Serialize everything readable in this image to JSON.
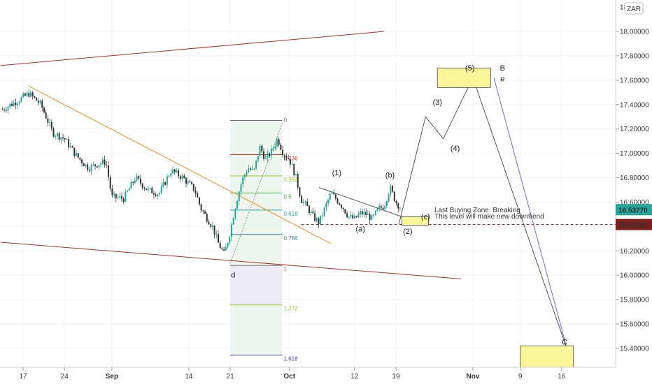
{
  "currency_badge": "ZAR",
  "chart_data": {
    "type": "candlestick",
    "title": "",
    "ylabel": "",
    "xlabel": "",
    "ylim": [
      15.2,
      18.18
    ],
    "ytick_labels": [
      "18.00000",
      "17.80000",
      "17.60000",
      "17.40000",
      "17.20000",
      "17.00000",
      "16.80000",
      "16.60000",
      "16.40000",
      "16.20000",
      "16.00000",
      "15.80000",
      "15.60000",
      "15.40000"
    ],
    "ytick_values": [
      18.0,
      17.8,
      17.6,
      17.4,
      17.2,
      17.0,
      16.8,
      16.6,
      16.4,
      16.2,
      16.0,
      15.8,
      15.6,
      15.4
    ],
    "top_partial_tick": "18",
    "x_labels": [
      {
        "label": "17",
        "day": 0
      },
      {
        "label": "24",
        "day": 7
      },
      {
        "label": "Sep",
        "day": 15
      },
      {
        "label": "14",
        "day": 28
      },
      {
        "label": "21",
        "day": 35
      },
      {
        "label": "Oct",
        "day": 45
      },
      {
        "label": "12",
        "day": 56
      },
      {
        "label": "19",
        "day": 63
      },
      {
        "label": "Nov",
        "day": 76
      },
      {
        "label": "9",
        "day": 84
      },
      {
        "label": "16",
        "day": 91
      }
    ],
    "price_labels": [
      {
        "value": 16.5377,
        "label": "16.53770",
        "color": "#26a69a"
      },
      {
        "value": 16.41582,
        "label": "16.41582",
        "color": "#7b1e1e"
      }
    ],
    "close_path": [
      {
        "day": -3.5,
        "price": 17.36
      },
      {
        "day": -1,
        "price": 17.43
      },
      {
        "day": 1,
        "price": 17.49
      },
      {
        "day": 3,
        "price": 17.4
      },
      {
        "day": 5,
        "price": 17.17
      },
      {
        "day": 7,
        "price": 17.12
      },
      {
        "day": 9,
        "price": 16.98
      },
      {
        "day": 11,
        "price": 16.88
      },
      {
        "day": 13,
        "price": 16.92
      },
      {
        "day": 14,
        "price": 16.93
      },
      {
        "day": 15,
        "price": 16.64
      },
      {
        "day": 17,
        "price": 16.63
      },
      {
        "day": 19,
        "price": 16.8
      },
      {
        "day": 21,
        "price": 16.7
      },
      {
        "day": 23,
        "price": 16.67
      },
      {
        "day": 25,
        "price": 16.86
      },
      {
        "day": 27,
        "price": 16.8
      },
      {
        "day": 29,
        "price": 16.7
      },
      {
        "day": 30,
        "price": 16.55
      },
      {
        "day": 32,
        "price": 16.4
      },
      {
        "day": 33,
        "price": 16.26
      },
      {
        "day": 34,
        "price": 16.17
      },
      {
        "day": 35,
        "price": 16.36
      },
      {
        "day": 36,
        "price": 16.6
      },
      {
        "day": 37,
        "price": 16.78
      },
      {
        "day": 38,
        "price": 16.88
      },
      {
        "day": 39,
        "price": 16.85
      },
      {
        "day": 40,
        "price": 17.05
      },
      {
        "day": 41,
        "price": 16.95
      },
      {
        "day": 42,
        "price": 17.02
      },
      {
        "day": 43,
        "price": 17.12
      },
      {
        "day": 44,
        "price": 17.0
      },
      {
        "day": 45,
        "price": 16.95
      },
      {
        "day": 46,
        "price": 16.82
      },
      {
        "day": 47,
        "price": 16.62
      },
      {
        "day": 48,
        "price": 16.56
      },
      {
        "day": 49,
        "price": 16.48
      },
      {
        "day": 50,
        "price": 16.43
      },
      {
        "day": 51,
        "price": 16.55
      },
      {
        "day": 52,
        "price": 16.67
      },
      {
        "day": 53,
        "price": 16.62
      },
      {
        "day": 54,
        "price": 16.56
      },
      {
        "day": 55,
        "price": 16.48
      },
      {
        "day": 56,
        "price": 16.46
      },
      {
        "day": 57,
        "price": 16.51
      },
      {
        "day": 58,
        "price": 16.5
      },
      {
        "day": 59,
        "price": 16.46
      },
      {
        "day": 60,
        "price": 16.54
      },
      {
        "day": 61,
        "price": 16.57
      },
      {
        "day": 62,
        "price": 16.72
      },
      {
        "day": 63,
        "price": 16.6
      },
      {
        "day": 64,
        "price": 16.54
      }
    ],
    "trendlines": [
      {
        "name": "upper-channel",
        "color": "#b22a2a",
        "points": [
          {
            "day": -3.8,
            "price": 17.72
          },
          {
            "day": 61,
            "price": 18.0
          }
        ]
      },
      {
        "name": "lower-channel",
        "color": "#b22a2a",
        "points": [
          {
            "day": -3.8,
            "price": 16.27
          },
          {
            "day": 74,
            "price": 15.97
          }
        ]
      },
      {
        "name": "descending-trendline",
        "color": "#f08c1e",
        "points": [
          {
            "day": 1,
            "price": 17.55
          },
          {
            "day": 52,
            "price": 16.26
          }
        ]
      },
      {
        "name": "wave-a-line",
        "color": "#555555",
        "points": [
          {
            "day": 50,
            "price": 16.72
          },
          {
            "day": 64,
            "price": 16.48
          }
        ]
      }
    ],
    "fib_retracement": {
      "top": 17.27,
      "bottom": 16.08,
      "levels": [
        {
          "label": "0",
          "ratio": 0,
          "color": "#666666"
        },
        {
          "label": "0.236",
          "ratio": 0.236,
          "color": "#c0392b"
        },
        {
          "label": "0.382",
          "ratio": 0.382,
          "color": "#9acd32"
        },
        {
          "label": "0.5",
          "ratio": 0.5,
          "color": "#4caf50"
        },
        {
          "label": "0.618",
          "ratio": 0.618,
          "color": "#26a69a"
        },
        {
          "label": "0.786",
          "ratio": 0.786,
          "color": "#3b7ea1"
        },
        {
          "label": "1",
          "ratio": 1.0,
          "color": "#777777"
        },
        {
          "label": "1.272",
          "ratio": 1.272,
          "color": "#9acd32"
        },
        {
          "label": "1.618",
          "ratio": 1.618,
          "color": "#3f3f9e"
        }
      ]
    },
    "projection_waves": [
      {
        "day": 63.5,
        "price": 16.42
      },
      {
        "day": 68,
        "price": 17.3
      },
      {
        "day": 71,
        "price": 17.12
      },
      {
        "day": 76,
        "price": 17.62
      },
      {
        "day": 92,
        "price": 15.38
      }
    ],
    "wave_labels": [
      {
        "text": "(1)",
        "day": 53,
        "price": 16.82,
        "color": "#222222"
      },
      {
        "text": "(a)",
        "day": 57,
        "price": 16.36,
        "color": "#6a4ba3"
      },
      {
        "text": "(b)",
        "day": 62,
        "price": 16.8,
        "color": "#6a4ba3"
      },
      {
        "text": "(c)",
        "day": 68,
        "price": 16.46,
        "color": "#6a4ba3"
      },
      {
        "text": "(2)",
        "day": 65,
        "price": 16.34,
        "color": "#222222"
      },
      {
        "text": "(3)",
        "day": 70,
        "price": 17.4,
        "color": "#222222"
      },
      {
        "text": "(4)",
        "day": 73,
        "price": 17.02,
        "color": "#222222"
      },
      {
        "text": "(5)",
        "day": 75.5,
        "price": 17.68,
        "color": "#222222"
      },
      {
        "text": "B",
        "day": 81,
        "price": 17.68,
        "color": "#6a6ad0"
      },
      {
        "text": "e",
        "day": 81,
        "price": 17.59,
        "color": "#f08c1e"
      },
      {
        "text": "d",
        "day": 35.5,
        "price": 15.98,
        "color": "#f08c1e"
      },
      {
        "text": "C",
        "day": 91.5,
        "price": 15.43,
        "color": "#6a6ad0"
      }
    ],
    "zones": [
      {
        "name": "buy-zone",
        "day0": 64,
        "day1": 68.5,
        "p0": 16.48,
        "p1": 16.41
      },
      {
        "name": "target-B-zone",
        "day0": 70,
        "day1": 79,
        "p0": 17.7,
        "p1": 17.54
      },
      {
        "name": "target-C-zone",
        "day0": 84,
        "day1": 93,
        "p0": 15.42,
        "p1": 15.24
      }
    ],
    "annotation": {
      "line1": "Last Buying Zone. Breaking",
      "line2": "This level will make new downtrend"
    }
  }
}
